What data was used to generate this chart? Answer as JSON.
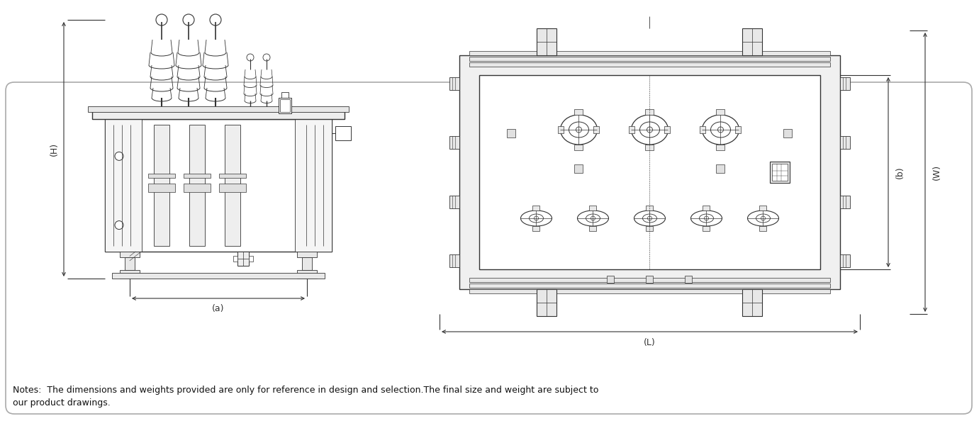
{
  "note_text": "Notes:  The dimensions and weights provided are only for reference in design and selection.The final size and weight are subject to\nour product drawings.",
  "bg_color": "#ffffff",
  "line_color": "#333333",
  "dim_color": "#333333",
  "label_H": "(H)",
  "label_a": "(a)",
  "label_L": "(L)",
  "label_b": "(b)",
  "label_W": "(W)",
  "figw": 13.81,
  "figh": 5.94,
  "dpi": 100
}
